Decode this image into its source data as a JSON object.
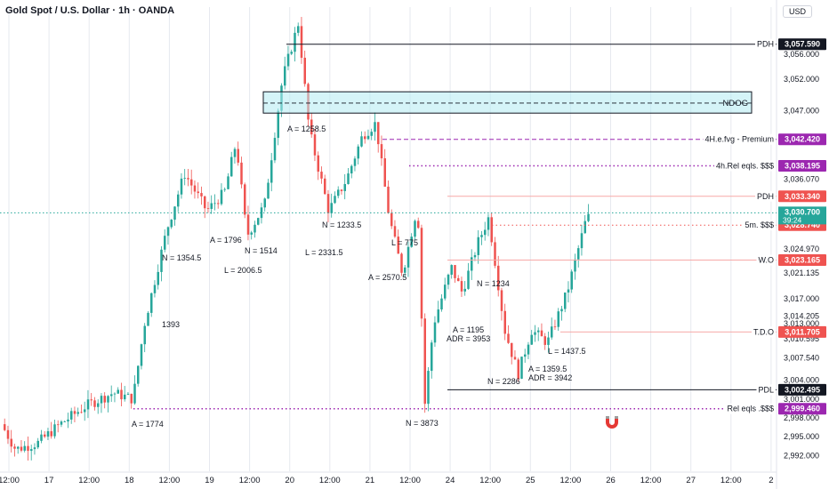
{
  "header": {
    "title": "Gold Spot / U.S. Dollar · 1h · OANDA",
    "currency": "USD"
  },
  "colors": {
    "bull": "#26a69a",
    "bear": "#ef5350",
    "purple": "#9c27b0",
    "line_red": "#f7a9a8",
    "zone": "#b2ebf2"
  },
  "chart_data": {
    "type": "candlestick",
    "ylim": [
      2989.5,
      3063.5
    ],
    "x_ticks": [
      "12:00",
      "17",
      "12:00",
      "18",
      "12:00",
      "19",
      "12:00",
      "20",
      "12:00",
      "21",
      "12:00",
      "24",
      "12:00",
      "25",
      "12:00",
      "26",
      "12:00",
      "27",
      "12:00",
      "2"
    ],
    "y_ticks": [
      3056.0,
      3052.0,
      3047.0,
      3036.07,
      3024.97,
      3021.135,
      3017.0,
      3014.205,
      3013.0,
      3010.595,
      3007.54,
      3004.0,
      3001.0,
      2998.0,
      2995.0,
      2992.0
    ],
    "current_price": {
      "value": 3030.7,
      "countdown": "39:24"
    },
    "price_markers": [
      {
        "label": "PDH",
        "value": 3057.59,
        "text": "3,057.590",
        "style": "black-solid"
      },
      {
        "label": "NDOG",
        "value": 3048.2,
        "text": "",
        "style": "zone"
      },
      {
        "label": "4H.e.fvg - Premium",
        "value": 3042.42,
        "text": "3,042.420",
        "style": "purple-dashed"
      },
      {
        "label": "4h.Rel eqls. $$$",
        "value": 3038.195,
        "text": "3,038.195",
        "style": "purple-dotted"
      },
      {
        "label": "PDH",
        "value": 3033.34,
        "text": "3,033.340",
        "style": "red-solid"
      },
      {
        "label": "5m. $$$",
        "value": 3028.74,
        "text": "3,028.740",
        "style": "red-dotted"
      },
      {
        "label": "W.O",
        "value": 3023.165,
        "text": "3,023.165",
        "style": "red-solid"
      },
      {
        "label": "T.D.O",
        "value": 3011.705,
        "text": "3,011.705",
        "style": "red-solid"
      },
      {
        "label": "PDL",
        "value": 3002.495,
        "text": "3,002.495",
        "style": "black-solid"
      },
      {
        "label": "Rel eqls .$$$",
        "value": 2999.46,
        "text": "2,999.460",
        "style": "purple-dotted"
      }
    ],
    "annotations": [
      "A = 1774",
      "1393",
      "N = 1354.5",
      "A = 1796",
      "N = 1514",
      "L = 2006.5",
      "A = 1258.5",
      "N = 1233.5",
      "L = 2331.5",
      "L = 775",
      "A = 2570.5",
      "N = 3873",
      "A = 1195",
      "ADR = 3953",
      "N = 1234",
      "N = 2286",
      "A = 1359.5",
      "ADR = 3942",
      "L = 1437.5"
    ]
  }
}
